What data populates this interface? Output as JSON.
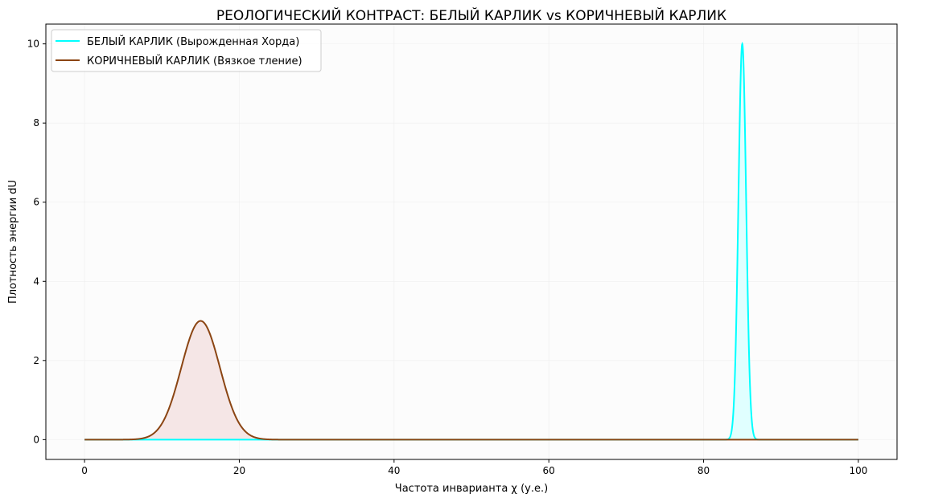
{
  "chart_data": {
    "type": "line",
    "title": "РЕОЛОГИЧЕСКИЙ КОНТРАСТ: БЕЛЫЙ КАРЛИК vs КОРИЧНЕВЫЙ КАРЛИК",
    "xlabel": "Частота инварианта χ (у.е.)",
    "ylabel": "Плотность энергии dU",
    "xlim": [
      -5,
      105
    ],
    "ylim": [
      -0.5,
      10.5
    ],
    "xticks": [
      0,
      20,
      40,
      60,
      80,
      100
    ],
    "yticks": [
      0,
      2,
      4,
      6,
      8,
      10
    ],
    "grid": true,
    "legend_position": "top-left",
    "x_range": [
      0,
      100
    ],
    "series": [
      {
        "name": "БЕЛЫЙ КАРЛИК (Вырожденная Хорда)",
        "color": "#00ffff",
        "fill": "#e0ffff",
        "shape": "gaussian",
        "center": 85,
        "peak": 10,
        "sigma": 0.5
      },
      {
        "name": "КОРИЧНЕВЫЙ КАРЛИК (Вязкое тление)",
        "color": "#8b4513",
        "fill": "#f5e6e6",
        "shape": "gaussian",
        "center": 15,
        "peak": 3,
        "sigma": 2.5
      }
    ]
  }
}
